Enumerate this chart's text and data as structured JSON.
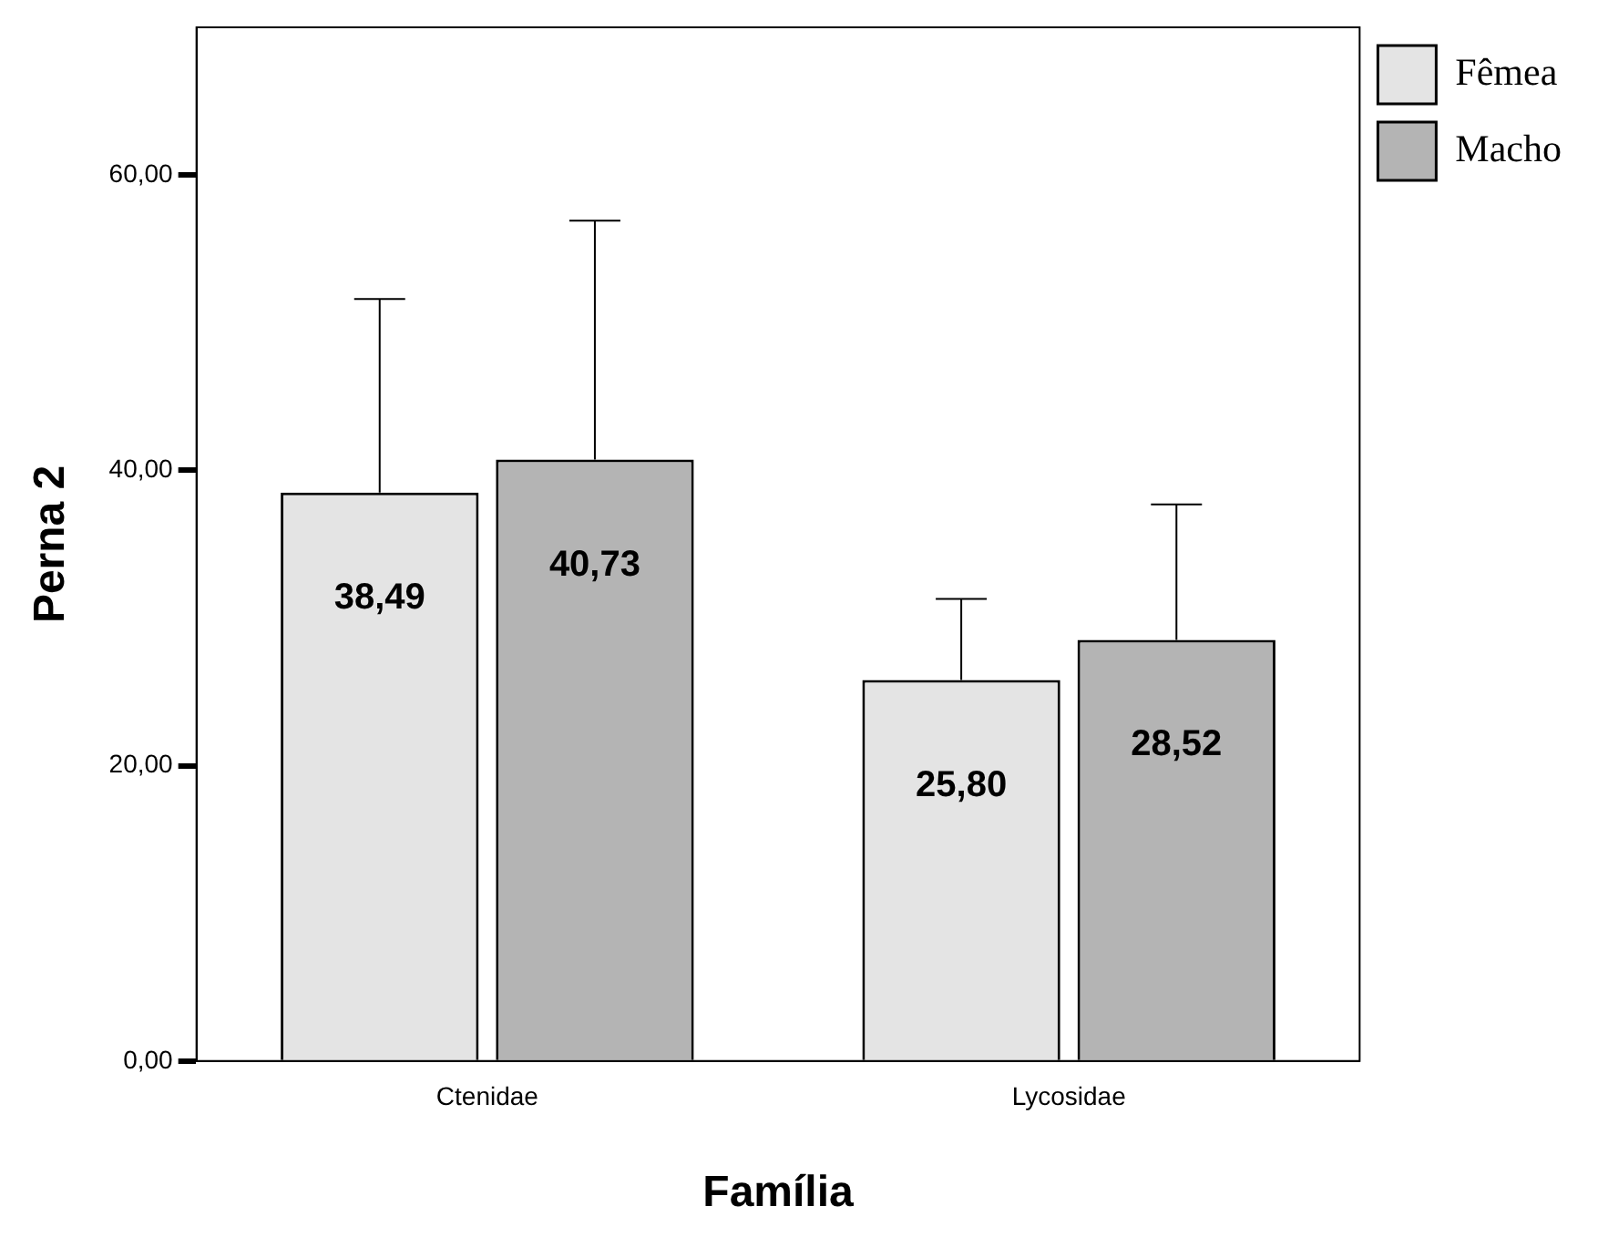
{
  "chart_data": {
    "type": "bar",
    "xlabel": "Família",
    "ylabel": "Perna 2",
    "categories": [
      "Ctenidae",
      "Lycosidae"
    ],
    "series": [
      {
        "name": "Fêmea",
        "color": "#e4e4e4",
        "values": [
          38.49,
          25.8
        ],
        "value_labels": [
          "38,49",
          "25,80"
        ],
        "errors": [
          [
            38.49,
            51.6
          ],
          [
            25.8,
            31.3
          ]
        ]
      },
      {
        "name": "Macho",
        "color": "#b4b4b4",
        "values": [
          40.73,
          28.52
        ],
        "value_labels": [
          "40,73",
          "28,52"
        ],
        "errors": [
          [
            40.73,
            56.9
          ],
          [
            28.52,
            37.7
          ]
        ]
      }
    ],
    "ylim": [
      0,
      70
    ],
    "yticks": [
      {
        "value": 0,
        "label": "0,00"
      },
      {
        "value": 20,
        "label": "20,00"
      },
      {
        "value": 40,
        "label": "40,00"
      },
      {
        "value": 60,
        "label": "60,00"
      }
    ],
    "grid": false,
    "legend": "top right"
  }
}
